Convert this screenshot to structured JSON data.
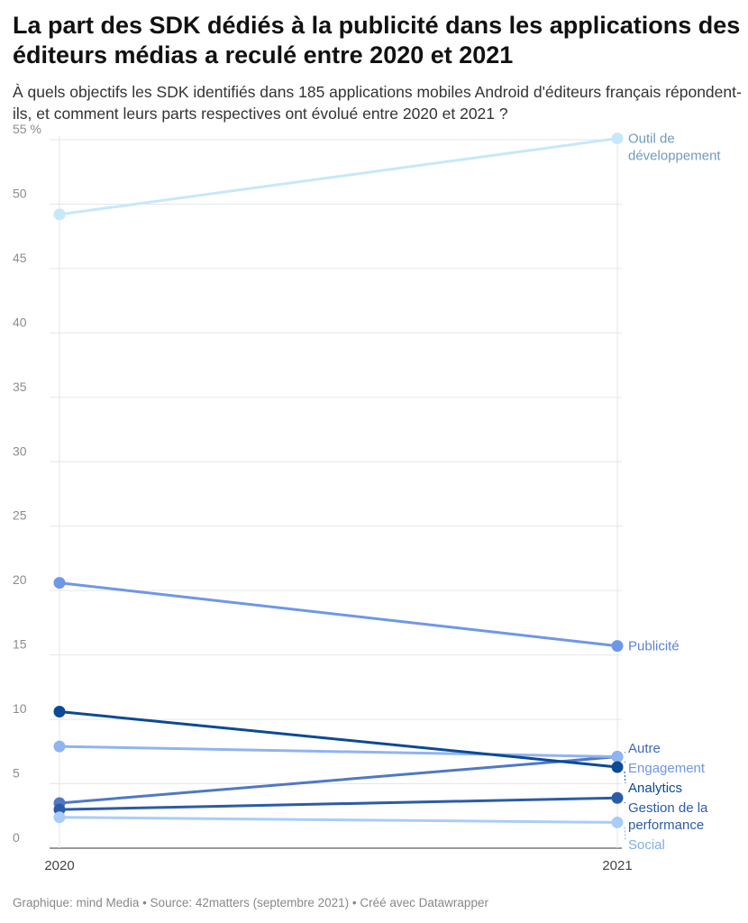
{
  "title": "La part des SDK dédiés à la publicité dans les applications des éditeurs médias a reculé entre 2020 et 2021",
  "subtitle": "À quels objectifs les SDK identifiés dans 185 applications mobiles Android d'éditeurs français répondent-ils, et comment leurs parts respectives ont évolué entre 2020 et 2021 ?",
  "footer": "Graphique: mind Media • Source: 42matters (septembre 2021) • Créé avec Datawrapper",
  "chart_data": {
    "type": "line",
    "x": [
      "2020",
      "2021"
    ],
    "ylim": [
      0,
      55
    ],
    "yticks": [
      0,
      5,
      10,
      15,
      20,
      25,
      30,
      35,
      40,
      45,
      50,
      55
    ],
    "ytick_labels": [
      "0",
      "5",
      "10",
      "15",
      "20",
      "25",
      "30",
      "35",
      "40",
      "45",
      "50",
      "55 %"
    ],
    "grid": true,
    "series": [
      {
        "name": "Outil de développement",
        "label_lines": [
          "Outil de",
          "développement"
        ],
        "values": [
          49.2,
          55.1
        ],
        "color": "#c6e8fa",
        "label_color": "#6f9bbd"
      },
      {
        "name": "Publicité",
        "label_lines": [
          "Publicité"
        ],
        "values": [
          20.6,
          15.7
        ],
        "color": "#6f97e8",
        "label_color": "#5b84d9"
      },
      {
        "name": "Autre",
        "label_lines": [
          "Autre"
        ],
        "values": [
          3.5,
          7.1
        ],
        "color": "#4f78c6",
        "label_color": "#3f6ab8"
      },
      {
        "name": "Engagement",
        "label_lines": [
          "Engagement"
        ],
        "values": [
          7.9,
          7.1
        ],
        "color": "#8fb4f0",
        "label_color": "#6f97e0"
      },
      {
        "name": "Analytics",
        "label_lines": [
          "Analytics"
        ],
        "values": [
          10.6,
          6.3
        ],
        "color": "#0b4a94",
        "label_color": "#0b4a94"
      },
      {
        "name": "Gestion de la performance",
        "label_lines": [
          "Gestion de la",
          "performance"
        ],
        "values": [
          3.0,
          3.9
        ],
        "color": "#2c5ca6",
        "label_color": "#2c5ca6"
      },
      {
        "name": "Social",
        "label_lines": [
          "Social"
        ],
        "values": [
          2.4,
          2.0
        ],
        "color": "#a9cdf8",
        "label_color": "#7faee8"
      }
    ]
  }
}
